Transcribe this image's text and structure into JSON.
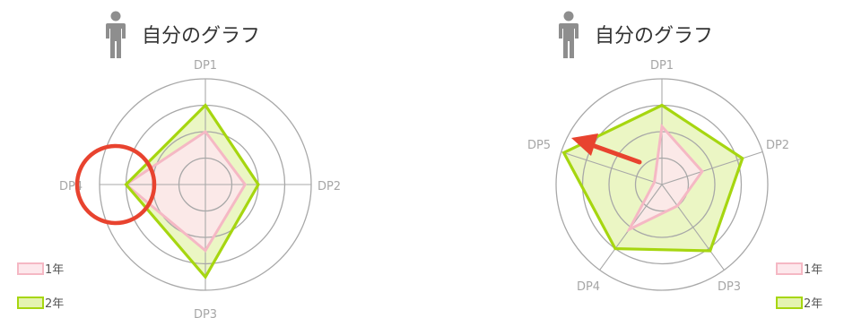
{
  "colors": {
    "series1_stroke": "#f5b8c4",
    "series1_fill": "#fde8ec",
    "series2_stroke": "#a6d610",
    "series2_fill": "#e4f3b0",
    "ring": "#a8a8a8",
    "axis_label": "#a6a6a6",
    "annotation": "#e8432f",
    "person_icon": "#8e8e8e"
  },
  "chart_data": [
    {
      "type": "radar",
      "title": "自分のグラフ",
      "title_icon": "person-icon",
      "axes": [
        "DP1",
        "DP2",
        "DP3",
        "DP4"
      ],
      "rlim": [
        0,
        4
      ],
      "rings": 4,
      "legend_position": "bottom-left",
      "series": [
        {
          "name": "1年",
          "values": [
            2,
            1.5,
            2.5,
            3
          ]
        },
        {
          "name": "2年",
          "values": [
            3,
            2,
            3.5,
            3
          ]
        }
      ],
      "annotation": {
        "shape": "circle",
        "target_axis": "DP4"
      }
    },
    {
      "type": "radar",
      "title": "自分のグラフ",
      "title_icon": "person-icon",
      "axes": [
        "DP1",
        "DP2",
        "DP3",
        "DP4",
        "DP5"
      ],
      "rlim": [
        0,
        4
      ],
      "rings": 4,
      "legend_position": "bottom-right",
      "series": [
        {
          "name": "1年",
          "values": [
            2.2,
            1.6,
            1.0,
            2.1,
            0.3
          ]
        },
        {
          "name": "2年",
          "values": [
            3.0,
            3.2,
            3.1,
            3.0,
            3.9
          ]
        }
      ],
      "annotation": {
        "shape": "arrow",
        "target_axis": "DP5"
      }
    }
  ]
}
